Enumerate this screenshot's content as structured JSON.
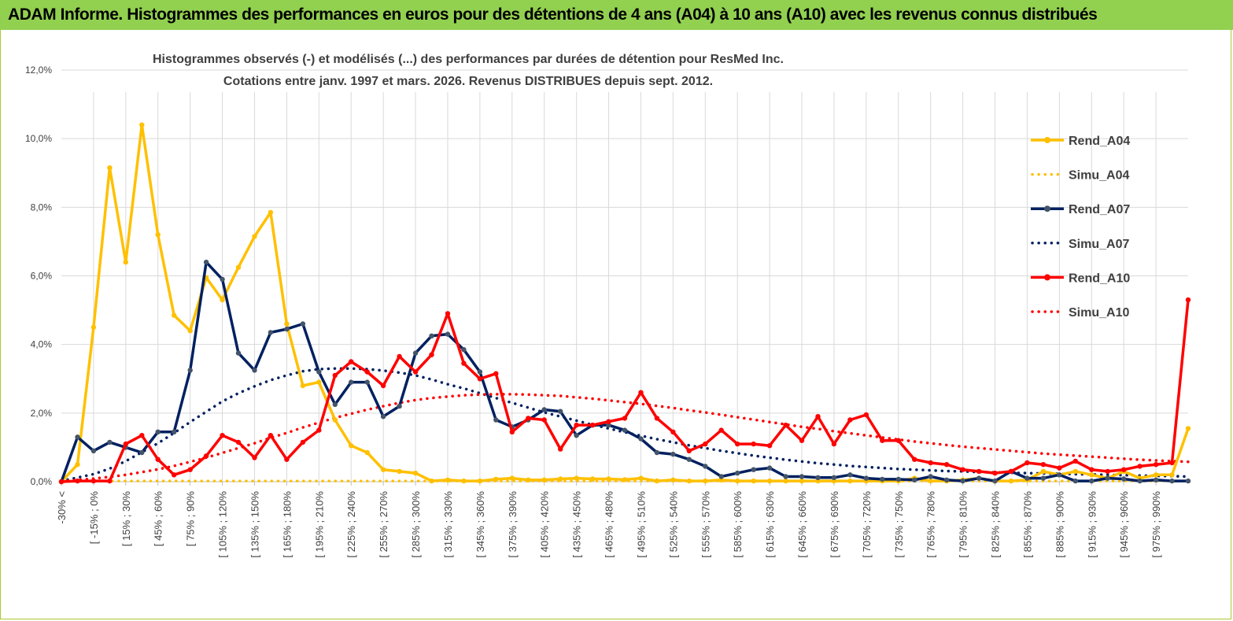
{
  "header": {
    "title": "ADAM Informe. Histogrammes des performances en euros pour des détentions de 4 ans (A04) à 10 ans (A10) avec les revenus connus distribués"
  },
  "colors": {
    "header_bg": "#92d050",
    "a04": "#ffc000",
    "a07": "#002060",
    "a07_marker": "#44546a",
    "a10": "#ff0000",
    "grid": "#d9d9d9",
    "axis": "#bfbfbf"
  },
  "chart_data": {
    "type": "line",
    "title_lines": [
      "Histogrammes observés (-) et modélisés (...) des performances par durées de détention pour ResMed Inc.",
      "Cotations entre janv. 1997 et mars. 2026.  Revenus DISTRIBUES depuis sept. 2012."
    ],
    "ylim": [
      0,
      12
    ],
    "yticks": [
      "0,0%",
      "2,0%",
      "4,0%",
      "6,0%",
      "8,0%",
      "10,0%",
      "12,0%"
    ],
    "x_labels": [
      "-30% <",
      "[ -15% ; 0%",
      "[ 15% ; 30%",
      "[ 45% ; 60%",
      "[ 75% ; 90%",
      "[ 105% ; 120%",
      "[ 135% ; 150%",
      "[ 165% ; 180%",
      "[ 195% ; 210%",
      "[ 225% ; 240%",
      "[ 255% ; 270%",
      "[ 285% ; 300%",
      "[ 315% ; 330%",
      "[ 345% ; 360%",
      "[ 375% ; 390%",
      "[ 405% ; 420%",
      "[ 435% ; 450%",
      "[ 465% ; 480%",
      "[ 495% ; 510%",
      "[ 525% ; 540%",
      "[ 555% ; 570%",
      "[ 585% ; 600%",
      "[ 615% ; 630%",
      "[ 645% ; 660%",
      "[ 675% ; 690%",
      "[ 705% ; 720%",
      "[ 735% ; 750%",
      "[ 765% ; 780%",
      "[ 795% ; 810%",
      "[ 825% ; 840%",
      "[ 855% ; 870%",
      "[ 885% ; 900%",
      "[ 915% ; 930%",
      "[ 945% ; 960%",
      "[ 975% ; 990%"
    ],
    "series": [
      {
        "name": "Rend_A04",
        "style": "solid",
        "color": "#ffc000",
        "values": [
          0,
          0.5,
          4.5,
          9.15,
          6.4,
          10.4,
          7.2,
          4.85,
          4.4,
          5.95,
          5.3,
          6.25,
          7.15,
          7.85,
          4.6,
          2.8,
          2.9,
          1.8,
          1.05,
          0.85,
          0.35,
          0.3,
          0.25,
          0.02,
          0.05,
          0.02,
          0.02,
          0.07,
          0.1,
          0.05,
          0.05,
          0.08,
          0.1,
          0.08,
          0.08,
          0.06,
          0.1,
          0.02,
          0.05,
          0.02,
          0.02,
          0.05,
          0.02,
          0.02,
          0.02,
          0.02,
          0.02,
          0.02,
          0.02,
          0.02,
          0.02,
          0.02,
          0.02,
          0.1,
          0.02,
          0.02,
          0.05,
          0.1,
          0.02,
          0.02,
          0.05,
          0.3,
          0.2,
          0.3,
          0.2,
          0.1,
          0.3,
          0.1,
          0.2,
          0.2,
          1.55
        ]
      },
      {
        "name": "Simu_A04",
        "style": "dotted",
        "color": "#ffc000",
        "values": [
          0.02,
          0.02,
          0.02,
          0.02,
          0.02,
          0.02,
          0.02,
          0.02,
          0.02,
          0.02,
          0.02,
          0.02,
          0.02,
          0.02,
          0.02,
          0.02,
          0.02,
          0.02,
          0.02,
          0.02,
          0.02,
          0.02,
          0.02,
          0.02,
          0.02,
          0.02,
          0.02,
          0.02,
          0.02,
          0.02,
          0.02,
          0.02,
          0.02,
          0.02,
          0.02,
          0.02,
          0.02,
          0.02,
          0.02,
          0.02,
          0.02,
          0.02,
          0.02,
          0.02,
          0.02,
          0.02,
          0.02,
          0.02,
          0.02,
          0.02,
          0.02,
          0.02,
          0.02,
          0.02,
          0.02,
          0.02,
          0.02,
          0.02,
          0.02,
          0.02,
          0.02,
          0.02,
          0.02,
          0.02,
          0.02,
          0.02,
          0.02,
          0.02,
          0.02,
          0.02,
          0.02
        ]
      },
      {
        "name": "Rend_A07",
        "style": "solid",
        "color": "#002060",
        "values": [
          0,
          1.3,
          0.9,
          1.15,
          1.0,
          0.85,
          1.45,
          1.45,
          3.25,
          6.4,
          5.9,
          3.75,
          3.25,
          4.35,
          4.45,
          4.6,
          3.2,
          2.25,
          2.9,
          2.9,
          1.9,
          2.2,
          3.75,
          4.25,
          4.3,
          3.85,
          3.2,
          1.8,
          1.6,
          1.8,
          2.1,
          2.05,
          1.35,
          1.65,
          1.65,
          1.5,
          1.25,
          0.85,
          0.8,
          0.65,
          0.45,
          0.15,
          0.25,
          0.35,
          0.4,
          0.15,
          0.15,
          0.12,
          0.12,
          0.2,
          0.1,
          0.07,
          0.07,
          0.05,
          0.15,
          0.05,
          0.02,
          0.1,
          0.02,
          0.3,
          0.1,
          0.1,
          0.2,
          0.02,
          0.02,
          0.1,
          0.08,
          0.02,
          0.05,
          0.02,
          0.02
        ]
      },
      {
        "name": "Simu_A07",
        "style": "dotted",
        "color": "#002060",
        "values": [
          0.02,
          0.12,
          0.22,
          0.38,
          0.6,
          0.86,
          1.12,
          1.42,
          1.74,
          2.04,
          2.34,
          2.58,
          2.78,
          2.96,
          3.1,
          3.22,
          3.28,
          3.3,
          3.3,
          3.28,
          3.24,
          3.18,
          3.1,
          2.98,
          2.84,
          2.72,
          2.58,
          2.44,
          2.3,
          2.16,
          2.02,
          1.9,
          1.78,
          1.66,
          1.55,
          1.44,
          1.34,
          1.24,
          1.15,
          1.06,
          0.98,
          0.9,
          0.83,
          0.76,
          0.7,
          0.64,
          0.59,
          0.54,
          0.5,
          0.46,
          0.43,
          0.4,
          0.37,
          0.35,
          0.33,
          0.31,
          0.3,
          0.28,
          0.27,
          0.26,
          0.25,
          0.24,
          0.23,
          0.22,
          0.21,
          0.2,
          0.19,
          0.18,
          0.17,
          0.16,
          0.15
        ]
      },
      {
        "name": "Rend_A10",
        "style": "solid",
        "color": "#ff0000",
        "values": [
          0,
          0.02,
          0.02,
          0.02,
          1.1,
          1.35,
          0.65,
          0.2,
          0.35,
          0.75,
          1.35,
          1.15,
          0.7,
          1.35,
          0.65,
          1.15,
          1.5,
          3.1,
          3.5,
          3.2,
          2.8,
          3.65,
          3.2,
          3.7,
          4.9,
          3.45,
          3.0,
          3.15,
          1.45,
          1.85,
          1.8,
          0.95,
          1.65,
          1.65,
          1.75,
          1.85,
          2.6,
          1.85,
          1.45,
          0.9,
          1.1,
          1.5,
          1.1,
          1.1,
          1.05,
          1.65,
          1.2,
          1.9,
          1.1,
          1.8,
          1.95,
          1.2,
          1.2,
          0.65,
          0.55,
          0.5,
          0.35,
          0.3,
          0.25,
          0.3,
          0.55,
          0.5,
          0.4,
          0.6,
          0.35,
          0.3,
          0.35,
          0.45,
          0.5,
          0.55,
          5.3
        ]
      },
      {
        "name": "Simu_A10",
        "style": "dotted",
        "color": "#ff0000",
        "values": [
          0.02,
          0.05,
          0.09,
          0.14,
          0.2,
          0.28,
          0.36,
          0.46,
          0.58,
          0.7,
          0.84,
          0.98,
          1.12,
          1.28,
          1.42,
          1.58,
          1.72,
          1.86,
          1.98,
          2.1,
          2.2,
          2.3,
          2.38,
          2.44,
          2.48,
          2.52,
          2.54,
          2.55,
          2.55,
          2.54,
          2.52,
          2.5,
          2.46,
          2.42,
          2.37,
          2.32,
          2.27,
          2.21,
          2.15,
          2.08,
          2.02,
          1.95,
          1.88,
          1.81,
          1.74,
          1.67,
          1.6,
          1.54,
          1.47,
          1.41,
          1.35,
          1.29,
          1.23,
          1.17,
          1.12,
          1.07,
          1.02,
          0.98,
          0.94,
          0.9,
          0.86,
          0.82,
          0.79,
          0.76,
          0.73,
          0.7,
          0.67,
          0.64,
          0.62,
          0.6,
          0.58
        ]
      }
    ],
    "legend_position": "right"
  }
}
